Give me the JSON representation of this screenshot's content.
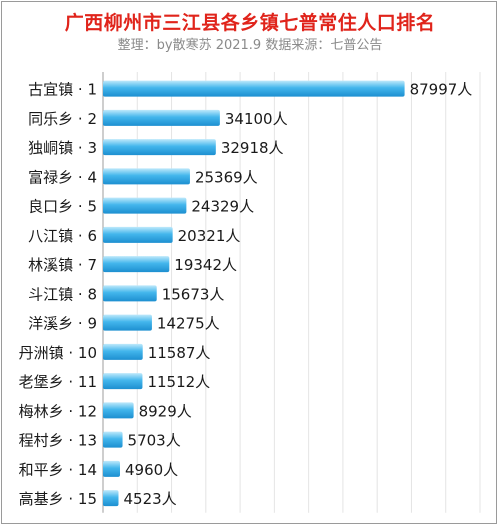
{
  "chart_data": {
    "type": "bar",
    "orientation": "horizontal",
    "title": "广西柳州市三江县各乡镇七普常住人口排名",
    "subtitle": "整理：by散寒苏 2021.9 数据来源：七普公告",
    "value_suffix": "人",
    "categories": [
      "古宜镇 · 1",
      "同乐乡 · 2",
      "独峒镇 · 3",
      "富禄乡 · 4",
      "良口乡 · 5",
      "八江镇 · 6",
      "林溪镇 · 7",
      "斗江镇 · 8",
      "洋溪乡 · 9",
      "丹洲镇 · 10",
      "老堡乡 · 11",
      "梅林乡 · 12",
      "程村乡 · 13",
      "和平乡 · 14",
      "高基乡 · 15"
    ],
    "values": [
      87997,
      34100,
      32918,
      25369,
      24329,
      20321,
      19342,
      15673,
      14275,
      11587,
      11512,
      8929,
      5703,
      4960,
      4523
    ],
    "data_labels": [
      "87997人",
      "34100人",
      "32918人",
      "25369人",
      "24329人",
      "20321人",
      "19342人",
      "15673人",
      "14275人",
      "11587人",
      "11512人",
      "8929人",
      "5703人",
      "4960人",
      "4523人"
    ],
    "xlim": [
      0,
      110000
    ],
    "grid": true,
    "bar_color": "#2aa3e0"
  }
}
